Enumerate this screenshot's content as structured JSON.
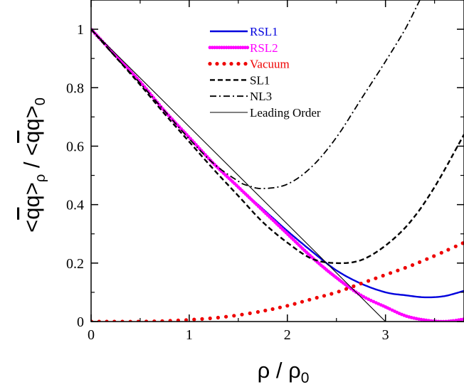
{
  "chart_data": {
    "type": "line",
    "xlabel": "ρ / ρ",
    "xlabel_sub": "0",
    "ylabel_parts": {
      "num_open": "<",
      "num_qbar": "q",
      "num_q": "q",
      "num_close": ">",
      "num_sub": "ρ",
      "slash": " / ",
      "den_open": "<",
      "den_qbar": "q",
      "den_q": "q",
      "den_close": ">",
      "den_sub": "0"
    },
    "xlim": [
      0,
      3.8
    ],
    "ylim": [
      0,
      1.1
    ],
    "xticks": [
      0,
      1,
      2,
      3
    ],
    "xtick_labels": [
      "0",
      "1",
      "2",
      "3"
    ],
    "yticks": [
      0,
      0.2,
      0.4,
      0.6,
      0.8,
      1.0
    ],
    "ytick_labels": [
      "0",
      "0.2",
      "0.4",
      "0.6",
      "0.8",
      "1"
    ],
    "grid": false,
    "legend_position": "top-center",
    "series": [
      {
        "name": "RSL1",
        "color": "#0000dd",
        "style": "solid-thick",
        "x": [
          0,
          0.25,
          0.5,
          0.75,
          1.0,
          1.25,
          1.5,
          1.75,
          2.0,
          2.25,
          2.5,
          2.75,
          3.0,
          3.2,
          3.4,
          3.6,
          3.8
        ],
        "y": [
          1.0,
          0.91,
          0.82,
          0.72,
          0.63,
          0.54,
          0.46,
          0.385,
          0.31,
          0.24,
          0.175,
          0.13,
          0.1,
          0.09,
          0.083,
          0.087,
          0.105
        ]
      },
      {
        "name": "RSL2",
        "color": "#ff00ff",
        "style": "dense-dots",
        "x": [
          0,
          0.25,
          0.5,
          0.75,
          1.0,
          1.25,
          1.5,
          1.75,
          2.0,
          2.25,
          2.5,
          2.75,
          3.0,
          3.2,
          3.4,
          3.6,
          3.8
        ],
        "y": [
          1.0,
          0.91,
          0.82,
          0.72,
          0.63,
          0.54,
          0.46,
          0.38,
          0.3,
          0.22,
          0.15,
          0.09,
          0.05,
          0.02,
          0.005,
          0.0,
          0.008
        ]
      },
      {
        "name": "Vacuum",
        "color": "#ee0000",
        "style": "sparse-dots",
        "x": [
          0,
          0.25,
          0.5,
          0.75,
          1.0,
          1.25,
          1.5,
          1.75,
          2.0,
          2.25,
          2.5,
          2.75,
          3.0,
          3.25,
          3.5,
          3.8
        ],
        "y": [
          0.0,
          0.0,
          0.0,
          0.002,
          0.006,
          0.012,
          0.022,
          0.036,
          0.054,
          0.077,
          0.1,
          0.13,
          0.16,
          0.19,
          0.225,
          0.27
        ]
      },
      {
        "name": "SL1",
        "color": "#000000",
        "style": "dashed",
        "x": [
          0,
          0.25,
          0.5,
          0.75,
          1.0,
          1.25,
          1.5,
          1.75,
          2.0,
          2.25,
          2.5,
          2.75,
          3.0,
          3.25,
          3.5,
          3.8
        ],
        "y": [
          1.0,
          0.905,
          0.81,
          0.71,
          0.615,
          0.52,
          0.43,
          0.34,
          0.27,
          0.215,
          0.2,
          0.21,
          0.26,
          0.34,
          0.46,
          0.64
        ]
      },
      {
        "name": "NL3",
        "color": "#000000",
        "style": "dash-dot",
        "x": [
          0,
          0.25,
          0.5,
          0.75,
          1.0,
          1.25,
          1.5,
          1.6,
          1.75,
          2.0,
          2.25,
          2.5,
          2.75,
          3.0,
          3.2,
          3.35
        ],
        "y": [
          1.0,
          0.905,
          0.815,
          0.72,
          0.625,
          0.54,
          0.48,
          0.465,
          0.455,
          0.47,
          0.53,
          0.63,
          0.76,
          0.89,
          1.0,
          1.1
        ]
      },
      {
        "name": "Leading Order",
        "color": "#000000",
        "style": "thin",
        "x": [
          0,
          3.0
        ],
        "y": [
          1.0,
          0.0
        ]
      }
    ]
  }
}
